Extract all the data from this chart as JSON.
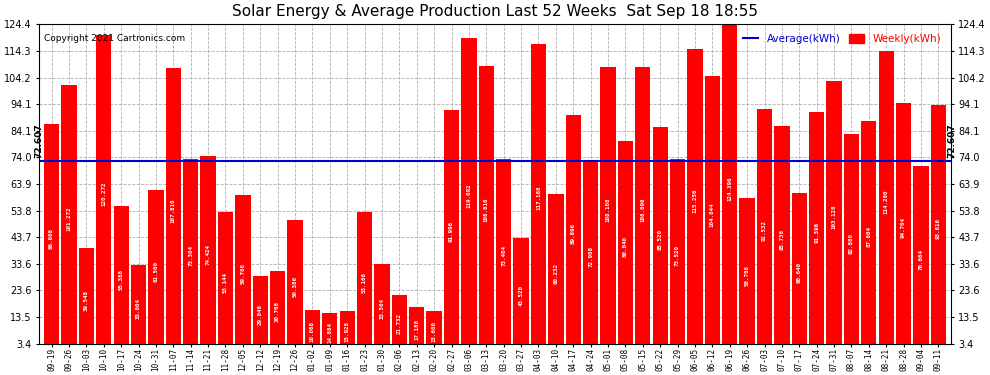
{
  "title": "Solar Energy & Average Production Last 52 Weeks  Sat Sep 18 18:55",
  "copyright": "Copyright 2021 Cartronics.com",
  "average_line": 72.607,
  "average_label": "72.607",
  "bar_color": "#ff0000",
  "average_color": "#0000cc",
  "legend_avg_label": "Average(kWh)",
  "legend_weekly_label": "Weekly(kWh)",
  "ylim_min": 3.4,
  "ylim_max": 124.4,
  "yticks": [
    3.4,
    13.5,
    23.6,
    33.6,
    43.7,
    53.8,
    63.9,
    74.0,
    84.1,
    94.1,
    104.2,
    114.3,
    124.4
  ],
  "background_color": "#ffffff",
  "grid_color": "#b0b0b0",
  "categories": [
    "09-19",
    "09-26",
    "10-03",
    "10-10",
    "10-17",
    "10-24",
    "10-31",
    "11-07",
    "11-14",
    "11-21",
    "11-28",
    "12-05",
    "12-12",
    "12-19",
    "12-26",
    "01-02",
    "01-09",
    "01-16",
    "01-23",
    "01-30",
    "02-06",
    "02-13",
    "02-20",
    "02-27",
    "03-06",
    "03-13",
    "03-20",
    "03-27",
    "04-03",
    "04-10",
    "04-17",
    "04-24",
    "05-01",
    "05-08",
    "05-15",
    "05-22",
    "05-29",
    "06-05",
    "06-12",
    "06-19",
    "06-26",
    "07-03",
    "07-10",
    "07-17",
    "07-24",
    "07-31",
    "08-07",
    "08-14",
    "08-21",
    "08-28",
    "09-04",
    "09-11"
  ],
  "values": [
    86.608,
    101.272,
    39.548,
    120.272,
    55.388,
    33.004,
    61.56,
    107.816,
    73.304,
    74.424,
    53.144,
    59.768,
    29.048,
    30.768,
    50.38,
    16.068,
    14.884,
    15.928,
    53.168,
    33.504,
    21.732,
    17.18,
    15.6,
    91.996,
    119.092,
    108.616,
    73.464,
    43.52,
    117.168,
    60.232,
    89.896,
    72.908,
    108.108,
    80.04,
    108.096,
    85.52,
    73.52,
    115.256,
    104.844,
    124.396,
    58.708,
    92.532,
    85.736,
    60.64,
    91.396,
    103.128,
    82.88,
    87.664,
    114.28,
    94.704,
    70.664,
    93.816
  ],
  "bar_values_labels": [
    "86.608",
    "101.272",
    "39.548",
    "120.272",
    "55.388",
    "33.004",
    "61.560",
    "107.816",
    "73.304",
    "74.424",
    "53.144",
    "59.768",
    "29.048",
    "30.768",
    "50.380",
    "16.068",
    "14.884",
    "15.928",
    "53.168",
    "33.504",
    "21.732",
    "17.180",
    "15.600",
    "91.996",
    "119.092",
    "108.616",
    "73.464",
    "43.520",
    "117.168",
    "60.232",
    "89.896",
    "72.908",
    "108.108",
    "80.040",
    "108.096",
    "85.520",
    "73.520",
    "115.256",
    "104.844",
    "124.396",
    "58.708",
    "92.532",
    "85.736",
    "60.640",
    "91.396",
    "103.128",
    "82.880",
    "87.664",
    "114.280",
    "94.704",
    "70.664",
    "93.816"
  ]
}
